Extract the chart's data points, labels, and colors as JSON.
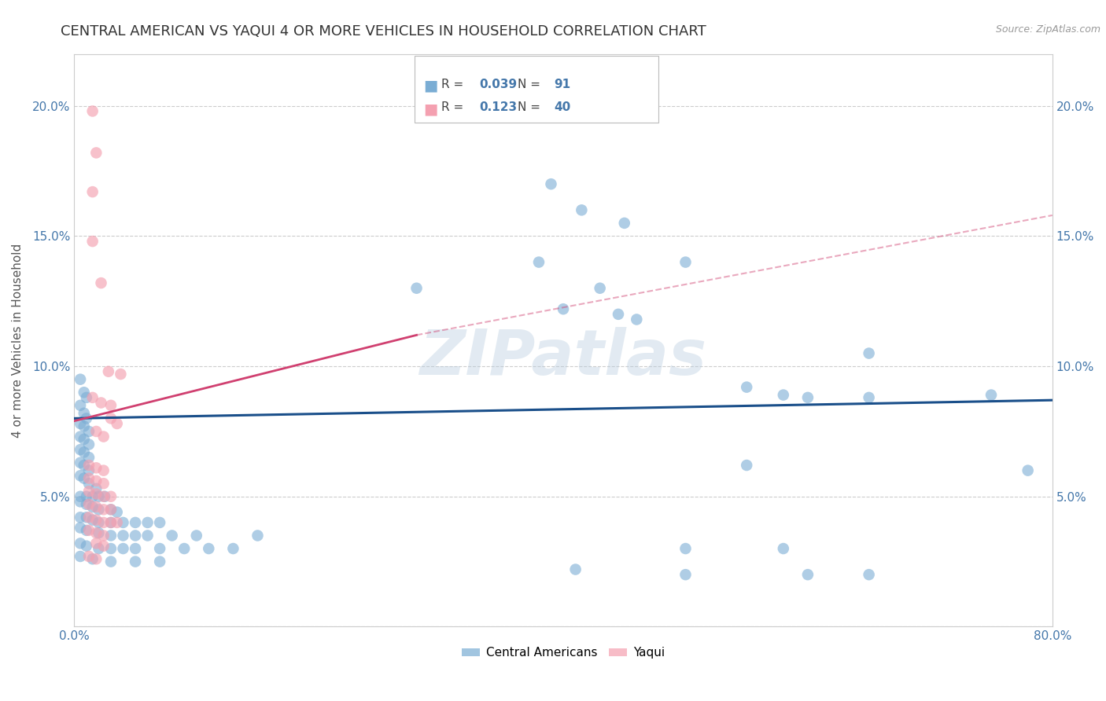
{
  "title": "CENTRAL AMERICAN VS YAQUI 4 OR MORE VEHICLES IN HOUSEHOLD CORRELATION CHART",
  "source": "Source: ZipAtlas.com",
  "ylabel": "4 or more Vehicles in Household",
  "xlim": [
    0.0,
    0.8
  ],
  "ylim": [
    0.0,
    0.22
  ],
  "xticks": [
    0.0,
    0.1,
    0.2,
    0.3,
    0.4,
    0.5,
    0.6,
    0.7,
    0.8
  ],
  "xticklabels": [
    "0.0%",
    "",
    "",
    "",
    "",
    "",
    "",
    "",
    "80.0%"
  ],
  "yticks": [
    0.0,
    0.05,
    0.1,
    0.15,
    0.2
  ],
  "yticklabels": [
    "",
    "5.0%",
    "10.0%",
    "15.0%",
    "20.0%"
  ],
  "legend_blue_r": "0.039",
  "legend_blue_n": "91",
  "legend_pink_r": "0.123",
  "legend_pink_n": "40",
  "blue_color": "#7aadd4",
  "pink_color": "#f4a0b0",
  "blue_line_color": "#1a4f8a",
  "pink_line_color": "#d04070",
  "watermark": "ZIPatlas",
  "blue_scatter": [
    [
      0.005,
      0.095
    ],
    [
      0.008,
      0.09
    ],
    [
      0.01,
      0.088
    ],
    [
      0.005,
      0.085
    ],
    [
      0.008,
      0.082
    ],
    [
      0.01,
      0.08
    ],
    [
      0.005,
      0.078
    ],
    [
      0.008,
      0.077
    ],
    [
      0.012,
      0.075
    ],
    [
      0.005,
      0.073
    ],
    [
      0.008,
      0.072
    ],
    [
      0.012,
      0.07
    ],
    [
      0.005,
      0.068
    ],
    [
      0.008,
      0.067
    ],
    [
      0.012,
      0.065
    ],
    [
      0.005,
      0.063
    ],
    [
      0.008,
      0.062
    ],
    [
      0.012,
      0.06
    ],
    [
      0.005,
      0.058
    ],
    [
      0.008,
      0.057
    ],
    [
      0.012,
      0.055
    ],
    [
      0.018,
      0.053
    ],
    [
      0.005,
      0.05
    ],
    [
      0.01,
      0.05
    ],
    [
      0.015,
      0.05
    ],
    [
      0.02,
      0.05
    ],
    [
      0.025,
      0.05
    ],
    [
      0.005,
      0.048
    ],
    [
      0.01,
      0.047
    ],
    [
      0.015,
      0.046
    ],
    [
      0.02,
      0.045
    ],
    [
      0.03,
      0.045
    ],
    [
      0.035,
      0.044
    ],
    [
      0.005,
      0.042
    ],
    [
      0.01,
      0.042
    ],
    [
      0.015,
      0.041
    ],
    [
      0.02,
      0.04
    ],
    [
      0.03,
      0.04
    ],
    [
      0.04,
      0.04
    ],
    [
      0.05,
      0.04
    ],
    [
      0.06,
      0.04
    ],
    [
      0.07,
      0.04
    ],
    [
      0.005,
      0.038
    ],
    [
      0.01,
      0.037
    ],
    [
      0.02,
      0.036
    ],
    [
      0.03,
      0.035
    ],
    [
      0.04,
      0.035
    ],
    [
      0.05,
      0.035
    ],
    [
      0.06,
      0.035
    ],
    [
      0.08,
      0.035
    ],
    [
      0.1,
      0.035
    ],
    [
      0.005,
      0.032
    ],
    [
      0.01,
      0.031
    ],
    [
      0.02,
      0.03
    ],
    [
      0.03,
      0.03
    ],
    [
      0.04,
      0.03
    ],
    [
      0.05,
      0.03
    ],
    [
      0.07,
      0.03
    ],
    [
      0.09,
      0.03
    ],
    [
      0.11,
      0.03
    ],
    [
      0.13,
      0.03
    ],
    [
      0.005,
      0.027
    ],
    [
      0.015,
      0.026
    ],
    [
      0.03,
      0.025
    ],
    [
      0.05,
      0.025
    ],
    [
      0.07,
      0.025
    ],
    [
      0.15,
      0.035
    ],
    [
      0.39,
      0.17
    ],
    [
      0.415,
      0.16
    ],
    [
      0.45,
      0.155
    ],
    [
      0.38,
      0.14
    ],
    [
      0.5,
      0.14
    ],
    [
      0.43,
      0.13
    ],
    [
      0.4,
      0.122
    ],
    [
      0.445,
      0.12
    ],
    [
      0.46,
      0.118
    ],
    [
      0.28,
      0.13
    ],
    [
      0.55,
      0.092
    ],
    [
      0.58,
      0.089
    ],
    [
      0.6,
      0.088
    ],
    [
      0.65,
      0.088
    ],
    [
      0.75,
      0.089
    ],
    [
      0.65,
      0.105
    ],
    [
      0.78,
      0.06
    ],
    [
      0.55,
      0.062
    ],
    [
      0.5,
      0.02
    ],
    [
      0.6,
      0.02
    ],
    [
      0.65,
      0.02
    ],
    [
      0.5,
      0.03
    ],
    [
      0.41,
      0.022
    ],
    [
      0.58,
      0.03
    ]
  ],
  "pink_scatter": [
    [
      0.015,
      0.198
    ],
    [
      0.018,
      0.182
    ],
    [
      0.015,
      0.167
    ],
    [
      0.015,
      0.148
    ],
    [
      0.022,
      0.132
    ],
    [
      0.028,
      0.098
    ],
    [
      0.015,
      0.088
    ],
    [
      0.022,
      0.086
    ],
    [
      0.03,
      0.085
    ],
    [
      0.03,
      0.08
    ],
    [
      0.035,
      0.078
    ],
    [
      0.018,
      0.075
    ],
    [
      0.024,
      0.073
    ],
    [
      0.038,
      0.097
    ],
    [
      0.012,
      0.062
    ],
    [
      0.018,
      0.061
    ],
    [
      0.024,
      0.06
    ],
    [
      0.012,
      0.057
    ],
    [
      0.018,
      0.056
    ],
    [
      0.024,
      0.055
    ],
    [
      0.012,
      0.052
    ],
    [
      0.018,
      0.051
    ],
    [
      0.024,
      0.05
    ],
    [
      0.03,
      0.05
    ],
    [
      0.012,
      0.047
    ],
    [
      0.018,
      0.046
    ],
    [
      0.024,
      0.045
    ],
    [
      0.03,
      0.045
    ],
    [
      0.012,
      0.042
    ],
    [
      0.018,
      0.041
    ],
    [
      0.024,
      0.04
    ],
    [
      0.03,
      0.04
    ],
    [
      0.035,
      0.04
    ],
    [
      0.012,
      0.037
    ],
    [
      0.018,
      0.036
    ],
    [
      0.024,
      0.035
    ],
    [
      0.018,
      0.032
    ],
    [
      0.024,
      0.031
    ],
    [
      0.012,
      0.027
    ],
    [
      0.018,
      0.026
    ]
  ],
  "blue_trend": [
    0.0,
    0.08,
    0.8,
    0.087
  ],
  "pink_trend_solid": [
    0.0,
    0.079,
    0.28,
    0.112
  ],
  "pink_trend_dash": [
    0.28,
    0.112,
    0.8,
    0.158
  ],
  "grid_color": "#cccccc",
  "axis_color": "#4477AA",
  "title_color": "#333333",
  "title_fontsize": 13,
  "label_fontsize": 11,
  "tick_fontsize": 11
}
